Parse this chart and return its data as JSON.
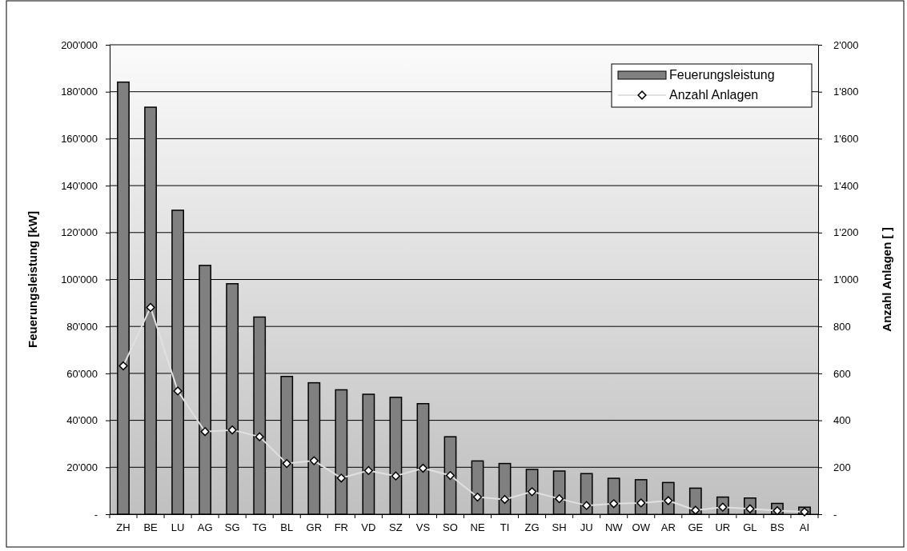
{
  "chart_data": {
    "type": "bar",
    "ylabel": "Feuerungsleistung [kW]",
    "y2label": "Anzahl Anlagen [ ]",
    "categories": [
      "ZH",
      "BE",
      "LU",
      "AG",
      "SG",
      "TG",
      "BL",
      "GR",
      "FR",
      "VD",
      "SZ",
      "VS",
      "SO",
      "NE",
      "TI",
      "ZG",
      "SH",
      "JU",
      "NW",
      "OW",
      "AR",
      "GE",
      "UR",
      "GL",
      "BS",
      "AI"
    ],
    "series": [
      {
        "name": "Feuerungsleistung",
        "color": "#808080",
        "values": [
          184100,
          173400,
          129500,
          106000,
          98200,
          84000,
          58700,
          56000,
          53000,
          51100,
          49800,
          47100,
          33000,
          22700,
          21600,
          19100,
          18400,
          17300,
          15300,
          14700,
          13500,
          11100,
          7300,
          6900,
          4600,
          3000
        ]
      },
      {
        "name": "Anzahl Anlagen",
        "type": "line",
        "axis": "y2",
        "color": "#e0e0e0",
        "marker": "diamond",
        "values": [
          632,
          881,
          525,
          352,
          359,
          330,
          216,
          228,
          154,
          186,
          163,
          196,
          165,
          73,
          63,
          96,
          66,
          37,
          45,
          48,
          58,
          17,
          30,
          23,
          15,
          10
        ]
      }
    ],
    "ylim": [
      0,
      200000
    ],
    "yticks": [
      {
        "value": 0,
        "label": "-"
      },
      {
        "value": 20000,
        "label": "20'000"
      },
      {
        "value": 40000,
        "label": "40'000"
      },
      {
        "value": 60000,
        "label": "60'000"
      },
      {
        "value": 80000,
        "label": "80'000"
      },
      {
        "value": 100000,
        "label": "100'000"
      },
      {
        "value": 120000,
        "label": "120'000"
      },
      {
        "value": 140000,
        "label": "140'000"
      },
      {
        "value": 160000,
        "label": "160'000"
      },
      {
        "value": 180000,
        "label": "180'000"
      },
      {
        "value": 200000,
        "label": "200'000"
      }
    ],
    "y2lim": [
      0,
      2000
    ],
    "y2ticks": [
      {
        "value": 0,
        "label": "-"
      },
      {
        "value": 200,
        "label": "200"
      },
      {
        "value": 400,
        "label": "400"
      },
      {
        "value": 600,
        "label": "600"
      },
      {
        "value": 800,
        "label": "800"
      },
      {
        "value": 1000,
        "label": "1'000"
      },
      {
        "value": 1200,
        "label": "1'200"
      },
      {
        "value": 1400,
        "label": "1'400"
      },
      {
        "value": 1600,
        "label": "1'600"
      },
      {
        "value": 1800,
        "label": "1'800"
      },
      {
        "value": 2000,
        "label": "2'000"
      }
    ],
    "grid": "y",
    "legend": "top right"
  }
}
